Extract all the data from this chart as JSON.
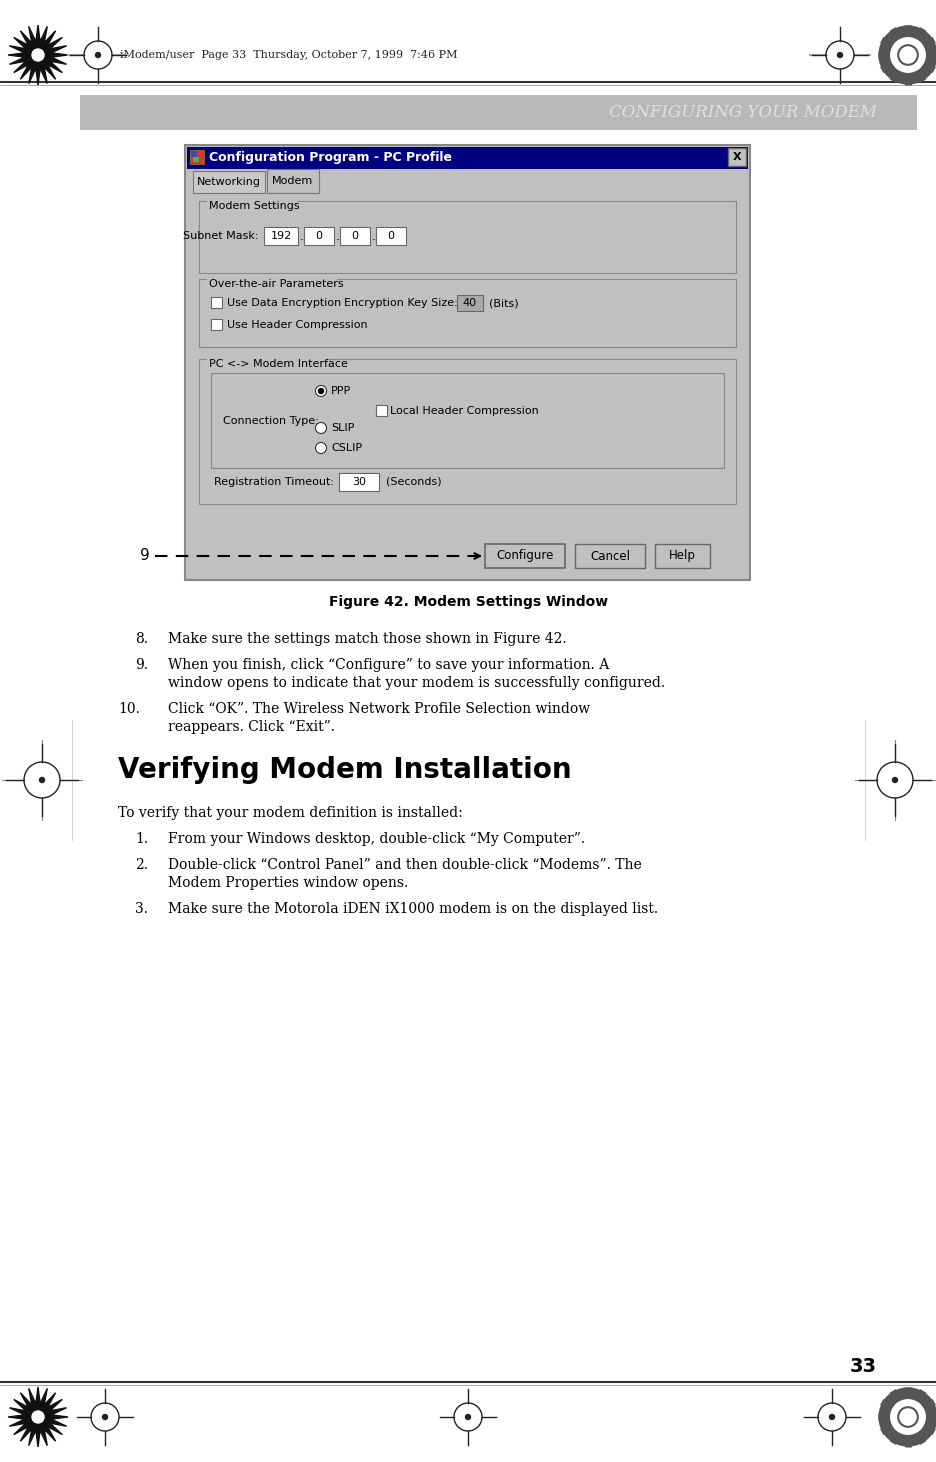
{
  "page_bg": "#ffffff",
  "header_bg": "#b8b8b8",
  "header_text": "CONFIGURING YOUR MODEM",
  "header_text_color": "#e0e0e0",
  "header_top_text": "iModem/user  Page 33  Thursday, October 7, 1999  7:46 PM",
  "page_number": "33",
  "figure_caption": "Figure 42. Modem Settings Window",
  "dialog_title": "Configuration Program - PC Profile",
  "dialog_title_bg": "#000080",
  "dialog_title_color": "#ffffff",
  "dialog_bg": "#c0c0c0",
  "section_heading": "Verifying Modem Installation",
  "intro_text": "To verify that your modem definition is installed:",
  "item8": "Make sure the settings match those shown in Figure 42.",
  "item9_line1": "When you finish, click “Configure” to save your information. A",
  "item9_line2": "window opens to indicate that your modem is successfully configured.",
  "item10_line1": "Click “OK”. The Wireless Network Profile Selection window",
  "item10_line2": "reappears. Click “Exit”.",
  "v_item1": "From your Windows desktop, double-click “My Computer”.",
  "v_item2_line1": "Double-click “Control Panel” and then double-click “Modems”. The",
  "v_item2_line2": "Modem Properties window opens.",
  "v_item3": "Make sure the Motorola iDEN iX1000 modem is on the displayed list."
}
